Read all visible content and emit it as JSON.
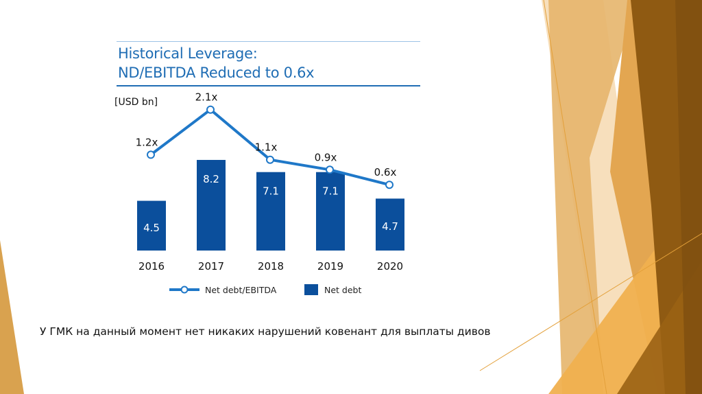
{
  "slide": {
    "title_line1": "Historical Leverage:",
    "title_line2": "ND/EBITDA Reduced to 0.6x",
    "unit_label": "[USD bn]",
    "caption": "У ГМК на данный момент нет никаких нарушений ковенант для выплаты дивов",
    "colors": {
      "title": "#1f6db4",
      "bar": "#0b4f9c",
      "line": "#1f78c8",
      "accent_dark": "#8f5a12",
      "accent_mid": "#e3a651",
      "accent_light": "#f5d7a8"
    }
  },
  "chart_data": {
    "type": "bar",
    "title": "Historical Leverage: ND/EBITDA Reduced to 0.6x",
    "ylabel": "[USD bn]",
    "xlabel": "",
    "categories": [
      "2016",
      "2017",
      "2018",
      "2019",
      "2020"
    ],
    "series": [
      {
        "name": "Net debt",
        "type": "bar",
        "values": [
          4.5,
          8.2,
          7.1,
          7.1,
          4.7
        ],
        "labels": [
          "4.5",
          "8.2",
          "7.1",
          "7.1",
          "4.7"
        ]
      },
      {
        "name": "Net debt/EBITDA",
        "type": "line",
        "values": [
          1.2,
          2.1,
          1.1,
          0.9,
          0.6
        ],
        "labels": [
          "1.2x",
          "2.1x",
          "1.1x",
          "0.9x",
          "0.6x"
        ]
      }
    ],
    "legend": {
      "position": "bottom",
      "entries": [
        "Net debt/EBITDA",
        "Net debt"
      ]
    },
    "grid": false
  }
}
